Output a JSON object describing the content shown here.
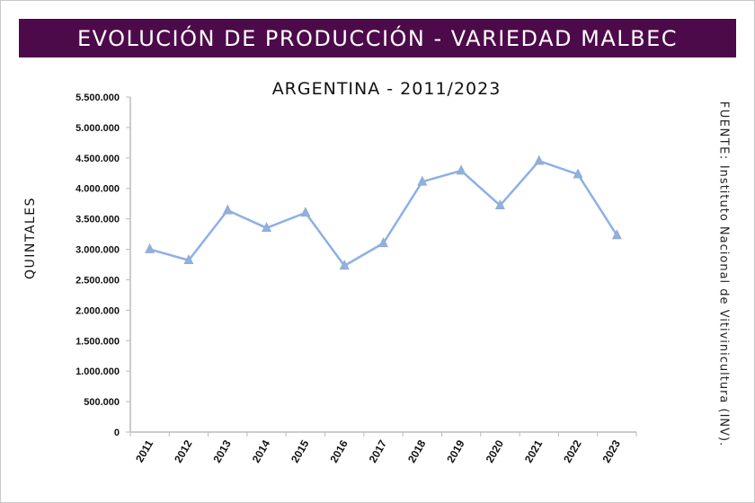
{
  "chart_data": {
    "type": "line",
    "title": "EVOLUCIÓN DE PRODUCCIÓN - VARIEDAD MALBEC",
    "subtitle": "ARGENTINA - 2011/2023",
    "xlabel": "",
    "ylabel": "QUINTALES",
    "source_label": "FUENTE:",
    "source_text": "Instituto Nacional de Vitivinicultura (INV).",
    "categories": [
      "2011",
      "2012",
      "2013",
      "2014",
      "2015",
      "2016",
      "2017",
      "2018",
      "2019",
      "2020",
      "2021",
      "2022",
      "2023"
    ],
    "series": [
      {
        "name": "Malbec",
        "values": [
          3000000,
          2820000,
          3640000,
          3350000,
          3600000,
          2730000,
          3100000,
          4110000,
          4290000,
          3720000,
          4450000,
          4230000,
          3230000
        ]
      }
    ],
    "ylim": [
      0,
      5500000
    ],
    "yticks": [
      0,
      500000,
      1000000,
      1500000,
      2000000,
      2500000,
      3000000,
      3500000,
      4000000,
      4500000,
      5000000,
      5500000
    ],
    "ytick_labels": [
      "0",
      "500.000",
      "1.000.000",
      "1.500.000",
      "2.000.000",
      "2.500.000",
      "3.000.000",
      "3.500.000",
      "4.000.000",
      "4.500.000",
      "5.000.000",
      "5.500.000"
    ],
    "grid": false,
    "line_color": "#8db0e6",
    "marker": "triangle"
  }
}
